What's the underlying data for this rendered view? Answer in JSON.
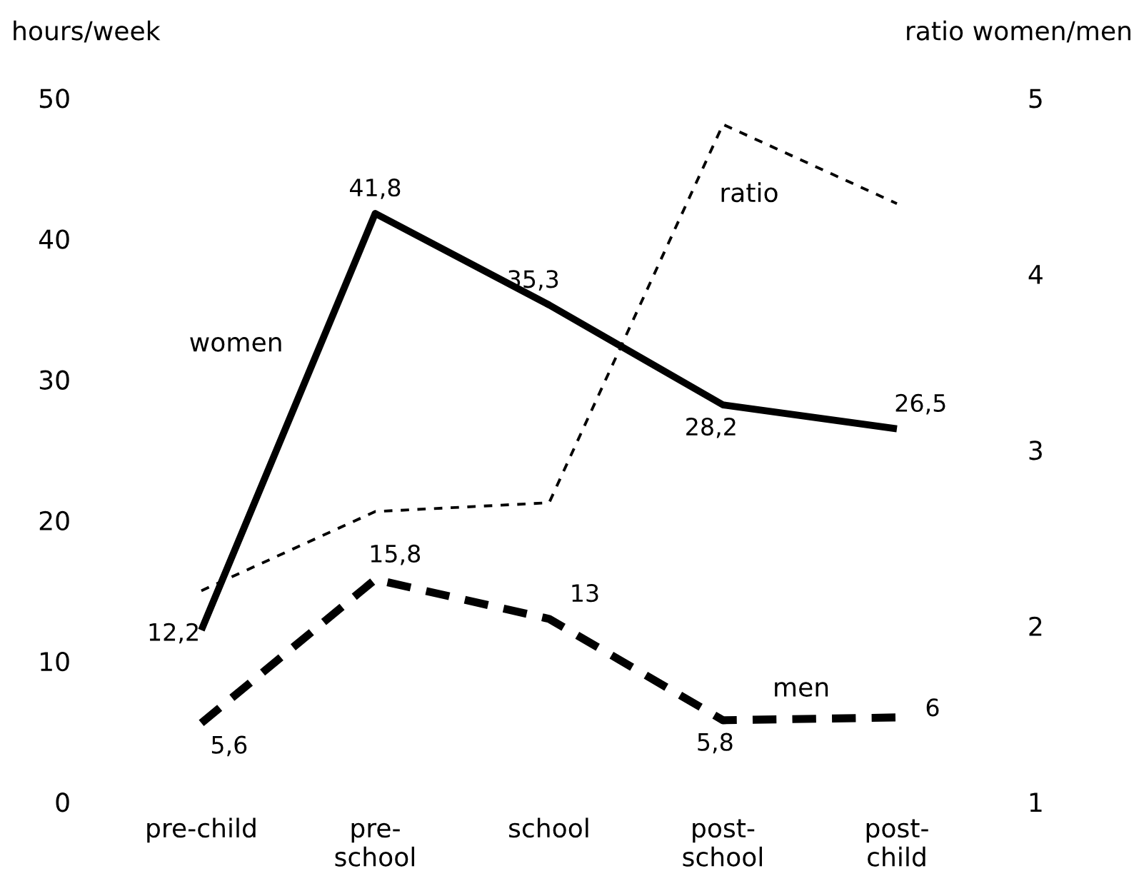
{
  "chart_data": {
    "type": "line",
    "categories": [
      "pre-child",
      "pre-\nschool",
      "school",
      "post-\nschool",
      "post-\nchild"
    ],
    "ylabel": "hours/week",
    "y2label": "ratio women/men",
    "ylim": [
      0,
      50
    ],
    "yticks": [
      0,
      10,
      20,
      30,
      40,
      50
    ],
    "y2lim": [
      1,
      5
    ],
    "y2ticks": [
      1,
      2,
      3,
      4,
      5
    ],
    "legend": false,
    "grid": false,
    "series": [
      {
        "name": "women",
        "color": "#000000",
        "line_style": "solid",
        "values": [
          12.2,
          41.8,
          35.3,
          28.2,
          26.5
        ],
        "value_labels": [
          "12,2",
          "41,8",
          "35,3",
          "28,2",
          "26,5"
        ]
      },
      {
        "name": "men",
        "color": "#000000",
        "line_style": "dashed",
        "values": [
          5.6,
          15.8,
          13,
          5.8,
          6
        ],
        "value_labels": [
          "5,6",
          "15,8",
          "13",
          "5,8",
          "6"
        ]
      },
      {
        "name": "ratio",
        "color": "#000000",
        "line_style": "dotted",
        "axis": "y2",
        "values": [
          2.2,
          2.65,
          2.7,
          4.85,
          4.4
        ]
      }
    ]
  }
}
